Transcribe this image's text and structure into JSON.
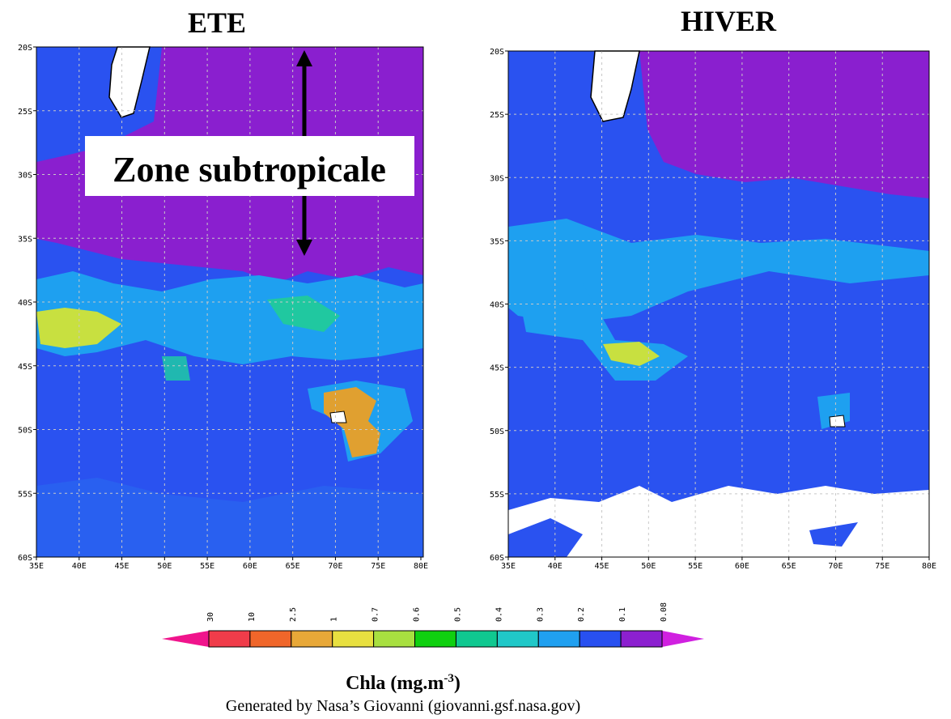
{
  "panels": [
    {
      "title": "ETE",
      "lat_labels": [
        "20S",
        "25S",
        "30S",
        "35S",
        "40S",
        "45S",
        "50S",
        "55S",
        "60S"
      ],
      "lon_labels": [
        "35E",
        "40E",
        "45E",
        "50E",
        "55E",
        "60E",
        "65E",
        "70E",
        "75E",
        "80E"
      ],
      "annotation": "Zone subtropicale"
    },
    {
      "title": "HIVER",
      "lat_labels": [
        "20S",
        "25S",
        "30S",
        "35S",
        "40S",
        "45S",
        "50S",
        "55S",
        "60S"
      ],
      "lon_labels": [
        "35E",
        "40E",
        "45E",
        "50E",
        "55E",
        "60E",
        "65E",
        "70E",
        "75E",
        "80E"
      ]
    }
  ],
  "colorbar": {
    "labels": [
      "30",
      "10",
      "2.5",
      "1",
      "0.7",
      "0.6",
      "0.5",
      "0.4",
      "0.3",
      "0.2",
      "0.1",
      "0.08"
    ],
    "colors": [
      "#f03c4a",
      "#f0662a",
      "#e8a838",
      "#e8e040",
      "#a8e040",
      "#10d010",
      "#10c890",
      "#20c8c8",
      "#20a0f0",
      "#2850f0",
      "#8c20d0"
    ],
    "title": "Chla (mg.m",
    "title_sup": "-3",
    "title_end": ")"
  },
  "credit": "Generated by Nasa’s Giovanni (giovanni.gsf.nasa.gov)"
}
